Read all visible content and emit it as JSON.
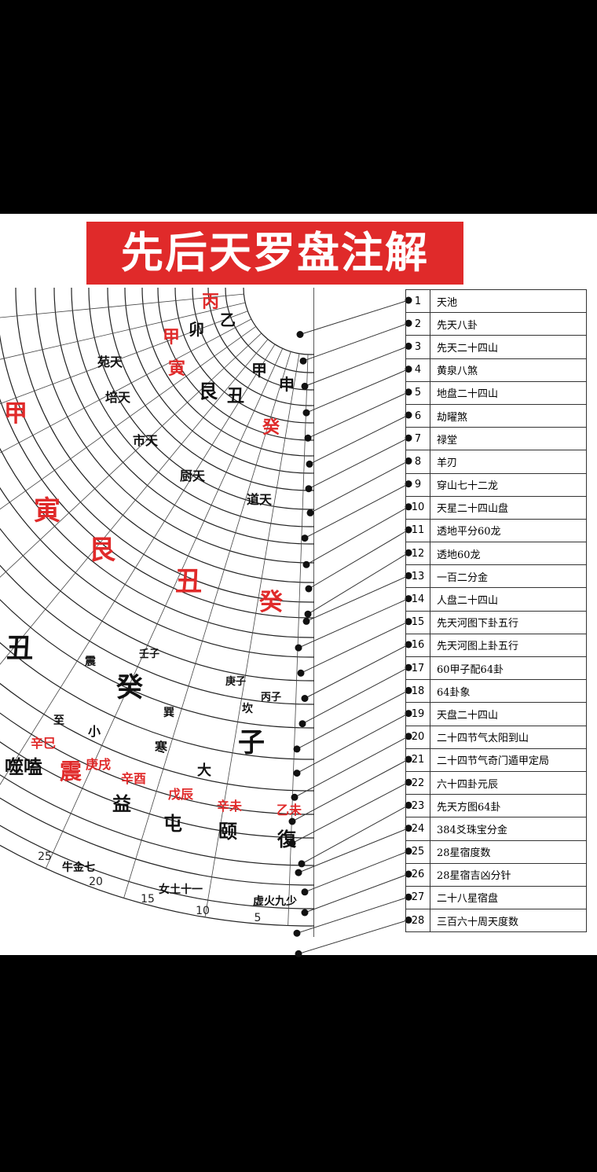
{
  "title": "先后天罗盘注解",
  "colors": {
    "banner": "#e02a2a",
    "accent_red": "#e02a2a",
    "ink": "#111111"
  },
  "table": [
    {
      "num": "1",
      "label": "天池"
    },
    {
      "num": "2",
      "label": "先天八卦"
    },
    {
      "num": "3",
      "label": "先天二十四山"
    },
    {
      "num": "4",
      "label": "黄泉八煞"
    },
    {
      "num": "5",
      "label": "地盘二十四山"
    },
    {
      "num": "6",
      "label": "劫曜煞"
    },
    {
      "num": "7",
      "label": "禄堂"
    },
    {
      "num": "8",
      "label": "羊刃"
    },
    {
      "num": "9",
      "label": "穿山七十二龙"
    },
    {
      "num": "10",
      "label": "天星二十四山盘"
    },
    {
      "num": "11",
      "label": "透地平分60龙"
    },
    {
      "num": "12",
      "label": "透地60龙"
    },
    {
      "num": "13",
      "label": "一百二分金"
    },
    {
      "num": "14",
      "label": "人盘二十四山"
    },
    {
      "num": "15",
      "label": "先天河图下卦五行"
    },
    {
      "num": "16",
      "label": "先天河图上卦五行"
    },
    {
      "num": "17",
      "label": "60甲子配64卦"
    },
    {
      "num": "18",
      "label": "64卦象"
    },
    {
      "num": "19",
      "label": "天盘二十四山"
    },
    {
      "num": "20",
      "label": "二十四节气太阳到山"
    },
    {
      "num": "21",
      "label": "二十四节气奇门遁甲定局"
    },
    {
      "num": "22",
      "label": "六十四卦元辰"
    },
    {
      "num": "23",
      "label": "先天方图64卦"
    },
    {
      "num": "24",
      "label": "384爻珠宝分金"
    },
    {
      "num": "25",
      "label": "28星宿度数"
    },
    {
      "num": "26",
      "label": "28星宿吉凶分针"
    },
    {
      "num": "27",
      "label": "二十八星宿盘"
    },
    {
      "num": "28",
      "label": "三百六十周天度数"
    }
  ],
  "dial_labels": [
    {
      "text": "丙",
      "red": true
    },
    {
      "text": "乙",
      "red": false
    },
    {
      "text": "卯",
      "red": false
    },
    {
      "text": "甲",
      "red": false
    },
    {
      "text": "申",
      "red": false
    },
    {
      "text": "甲",
      "red": true
    },
    {
      "text": "寅",
      "red": true
    },
    {
      "text": "艮",
      "red": false
    },
    {
      "text": "丑",
      "red": false
    },
    {
      "text": "癸",
      "red": true
    },
    {
      "text": "苑天",
      "red": false
    },
    {
      "text": "培天",
      "red": false
    },
    {
      "text": "市天",
      "red": false
    },
    {
      "text": "厨天",
      "red": false
    },
    {
      "text": "道天",
      "red": false
    },
    {
      "text": "甲",
      "red": true
    },
    {
      "text": "寅",
      "red": true
    },
    {
      "text": "艮",
      "red": true
    },
    {
      "text": "丑",
      "red": true
    },
    {
      "text": "癸",
      "red": true
    },
    {
      "text": "丑",
      "red": false
    },
    {
      "text": "癸",
      "red": false
    },
    {
      "text": "子",
      "red": false
    },
    {
      "text": "益",
      "red": false
    },
    {
      "text": "屯",
      "red": false
    },
    {
      "text": "颐",
      "red": false
    },
    {
      "text": "復",
      "red": false
    },
    {
      "text": "噬嗑",
      "red": false
    },
    {
      "text": "震",
      "red": true
    },
    {
      "text": "辛巳",
      "red": true
    },
    {
      "text": "庚戌",
      "red": true
    },
    {
      "text": "辛酉",
      "red": true
    },
    {
      "text": "戊辰",
      "red": true
    },
    {
      "text": "辛未",
      "red": true
    },
    {
      "text": "乙未",
      "red": true
    },
    {
      "text": "小",
      "red": false
    },
    {
      "text": "寒",
      "red": false
    },
    {
      "text": "大",
      "red": false
    },
    {
      "text": "至",
      "red": false
    },
    {
      "text": "牛金七",
      "red": false
    },
    {
      "text": "女土十一",
      "red": false
    },
    {
      "text": "虚火九少",
      "red": false
    },
    {
      "text": "庚子",
      "red": false
    },
    {
      "text": "壬子",
      "red": false
    },
    {
      "text": "丙子",
      "red": false
    },
    {
      "text": "坎",
      "red": false
    },
    {
      "text": "巽",
      "red": false
    },
    {
      "text": "震",
      "red": false
    }
  ],
  "scale_ticks": [
    "25",
    "20",
    "15",
    "10",
    "5"
  ]
}
